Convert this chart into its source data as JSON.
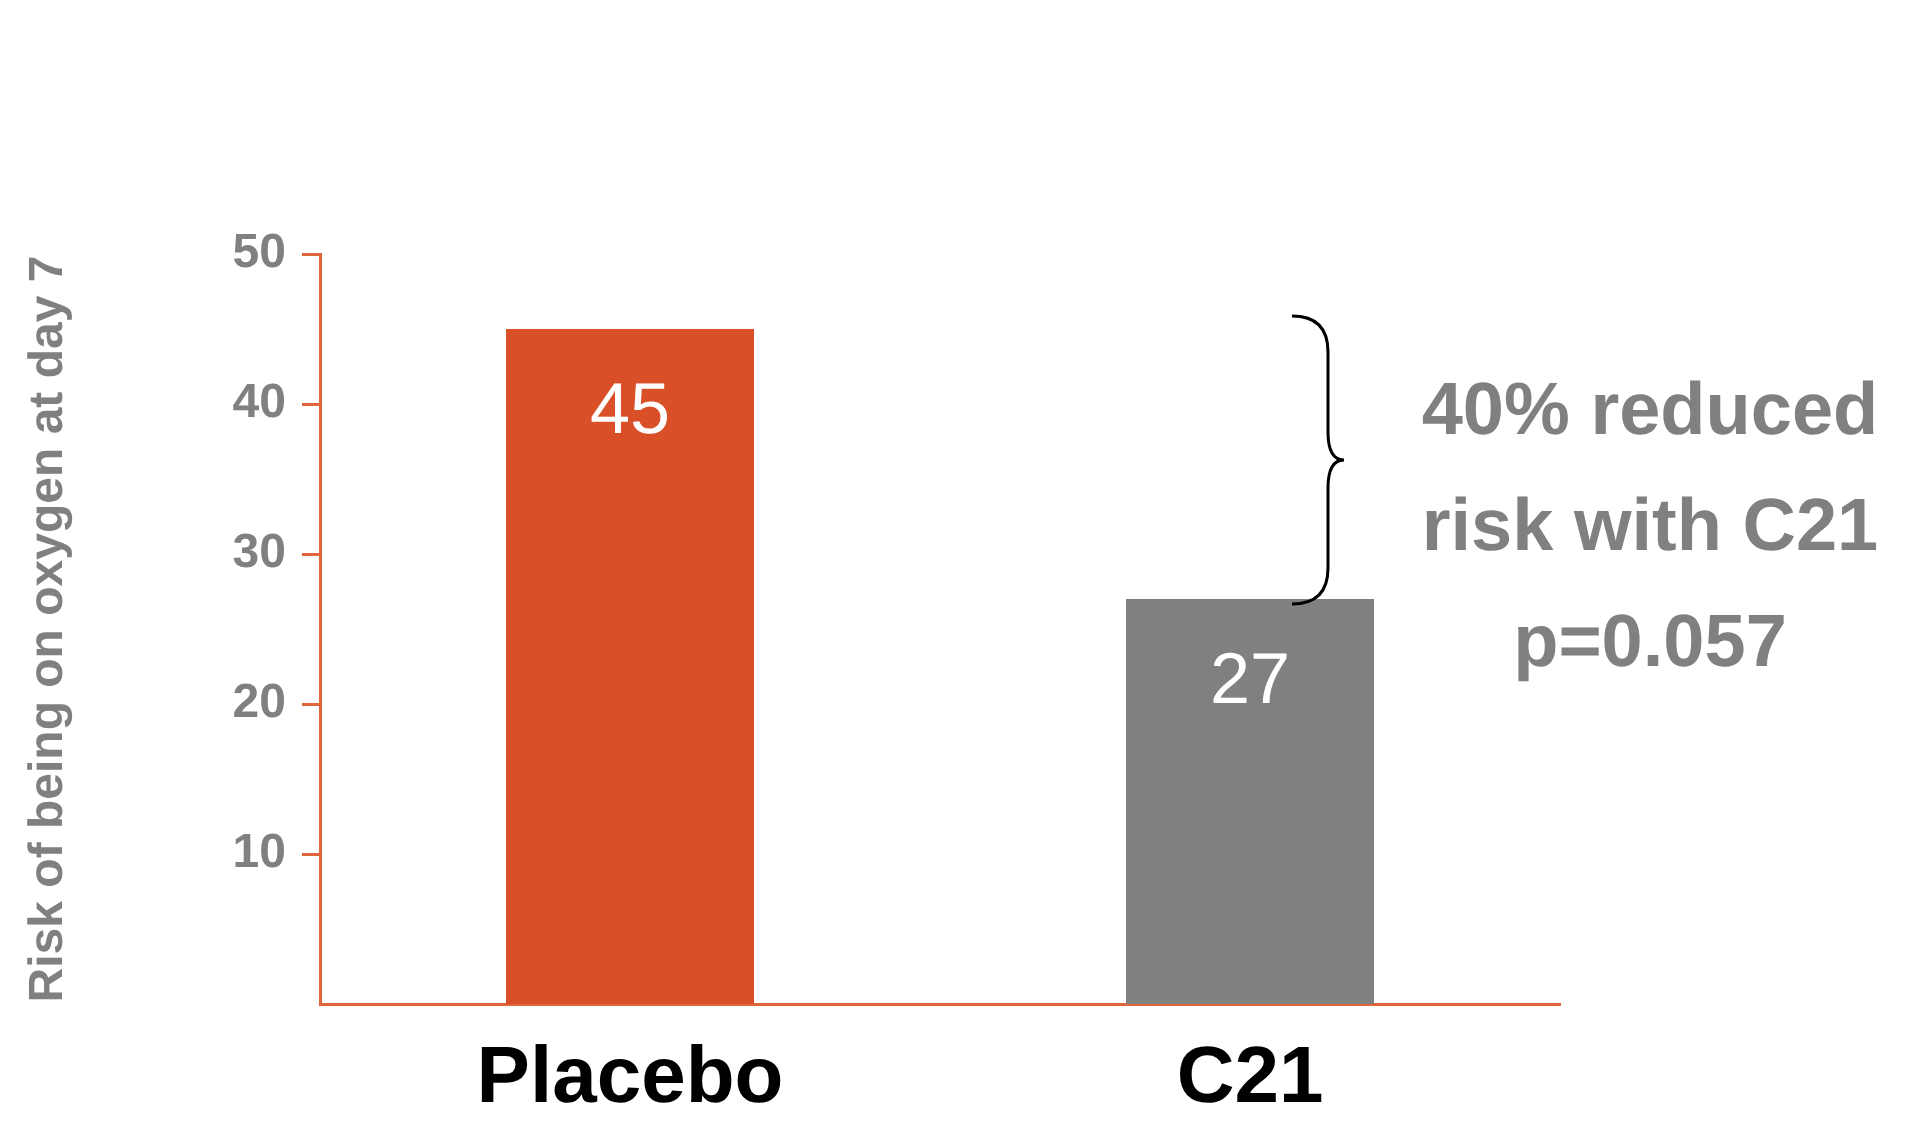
{
  "chart_data": {
    "type": "bar",
    "ylabel": "Risk of being on oxygen at day 7",
    "categories": [
      "Placebo",
      "C21"
    ],
    "values": [
      45,
      27
    ],
    "colors": [
      "#d94f27",
      "#808080"
    ],
    "ylim": [
      0,
      50
    ],
    "yticks": [
      10,
      20,
      30,
      40,
      50
    ],
    "grid": false,
    "legend": false,
    "data_labels": true,
    "annotations": [
      "40% reduced\nrisk with C21\np=0.057"
    ]
  }
}
